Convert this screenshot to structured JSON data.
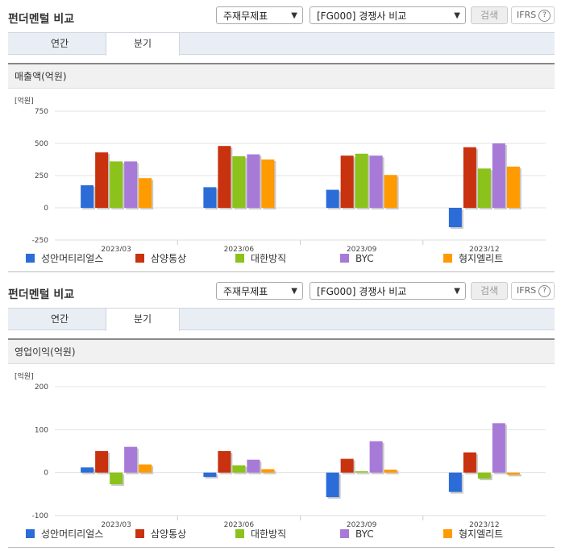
{
  "panels": [
    {
      "title": "펀더멘털 비교",
      "select_theme": "주재무제표",
      "select_compare": "[FG000] 경쟁사 비교",
      "search_label": "검색",
      "ifrs_label": "IFRS",
      "help_glyph": "?",
      "tabs": [
        {
          "label": "연간",
          "active": false
        },
        {
          "label": "분기",
          "active": true
        }
      ],
      "chart_title": "매출액(억원)"
    },
    {
      "title": "펀더멘털 비교",
      "select_theme": "주재무제표",
      "select_compare": "[FG000] 경쟁사 비교",
      "search_label": "검색",
      "ifrs_label": "IFRS",
      "help_glyph": "?",
      "tabs": [
        {
          "label": "연간",
          "active": false
        },
        {
          "label": "분기",
          "active": true
        }
      ],
      "chart_title": "영업이익(억원)"
    }
  ],
  "chart_data": [
    {
      "type": "bar",
      "title": "매출액(억원)",
      "unit_label": "[억원]",
      "categories": [
        "2023/03",
        "2023/06",
        "2023/09",
        "2023/12"
      ],
      "ylim": [
        -250,
        750
      ],
      "yticks": [
        "750",
        "500",
        "250",
        "0",
        "-250"
      ],
      "ytick_values": [
        750,
        500,
        250,
        0,
        -250
      ],
      "grid": true,
      "legend_position": "bottom",
      "series": [
        {
          "name": "성안머티리얼스",
          "color": "#2b6cd8",
          "values": [
            175,
            160,
            140,
            -150
          ]
        },
        {
          "name": "삼양통상",
          "color": "#c8320e",
          "values": [
            430,
            480,
            405,
            470
          ]
        },
        {
          "name": "대한방직",
          "color": "#8bc21c",
          "values": [
            360,
            400,
            420,
            305
          ]
        },
        {
          "name": "BYC",
          "color": "#a77ad8",
          "values": [
            360,
            415,
            405,
            500
          ]
        },
        {
          "name": "형지엘리트",
          "color": "#ff9a00",
          "values": [
            230,
            375,
            255,
            320
          ]
        }
      ]
    },
    {
      "type": "bar",
      "title": "영업이익(억원)",
      "unit_label": "[억원]",
      "categories": [
        "2023/03",
        "2023/06",
        "2023/09",
        "2023/12"
      ],
      "ylim": [
        -100,
        200
      ],
      "yticks": [
        "200",
        "100",
        "0",
        "-100"
      ],
      "ytick_values": [
        200,
        100,
        0,
        -100
      ],
      "grid": true,
      "legend_position": "bottom",
      "series": [
        {
          "name": "성안머티리얼스",
          "color": "#2b6cd8",
          "values": [
            12,
            -10,
            -57,
            -45
          ]
        },
        {
          "name": "삼양통상",
          "color": "#c8320e",
          "values": [
            50,
            50,
            32,
            47
          ]
        },
        {
          "name": "대한방직",
          "color": "#8bc21c",
          "values": [
            -27,
            17,
            3,
            -14
          ]
        },
        {
          "name": "BYC",
          "color": "#a77ad8",
          "values": [
            60,
            30,
            73,
            115
          ]
        },
        {
          "name": "형지엘리트",
          "color": "#ff9a00",
          "values": [
            19,
            8,
            7,
            -5
          ]
        }
      ]
    }
  ]
}
